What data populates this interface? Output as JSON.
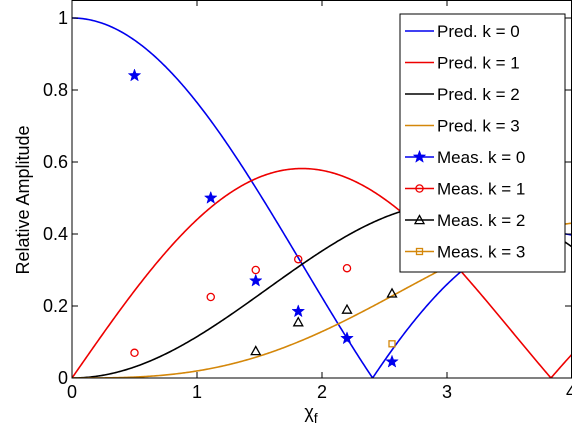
{
  "chart_data": {
    "type": "line",
    "xlabel": "χ",
    "xlabel_subscript": "f",
    "ylabel": "Relative Amplitude",
    "xlim": [
      0,
      4
    ],
    "ylim": [
      0,
      1.05
    ],
    "x_ticks": [
      0,
      1,
      2,
      3,
      4
    ],
    "x_tick_labels": [
      "0",
      "1",
      "2",
      "3",
      "4"
    ],
    "y_ticks": [
      0,
      0.2,
      0.4,
      0.6,
      0.8,
      1
    ],
    "y_tick_labels": [
      "0",
      "0.2",
      "0.4",
      "0.6",
      "0.8",
      "1"
    ],
    "grid": false,
    "legend_position": "top-right",
    "series": [
      {
        "name": "Pred. k = 0",
        "kind": "line",
        "color": "#0000ee",
        "order": 0
      },
      {
        "name": "Pred. k = 1",
        "kind": "line",
        "color": "#ee0000",
        "order": 1
      },
      {
        "name": "Pred. k = 2",
        "kind": "line",
        "color": "#000000",
        "order": 2
      },
      {
        "name": "Pred. k = 3",
        "kind": "line",
        "color": "#d4870a",
        "order": 3
      },
      {
        "name": "Meas. k = 0",
        "kind": "marker",
        "marker": "star",
        "color": "#0000ee",
        "x": [
          0.5,
          1.11,
          1.47,
          1.81,
          2.2,
          2.56
        ],
        "y": [
          0.84,
          0.5,
          0.27,
          0.185,
          0.11,
          0.045
        ]
      },
      {
        "name": "Meas. k = 1",
        "kind": "marker",
        "marker": "circle",
        "color": "#ee0000",
        "x": [
          0.5,
          1.11,
          1.47,
          1.81,
          2.2
        ],
        "y": [
          0.07,
          0.225,
          0.3,
          0.33,
          0.305
        ]
      },
      {
        "name": "Meas. k = 2",
        "kind": "marker",
        "marker": "triangle",
        "color": "#000000",
        "x": [
          1.47,
          1.81,
          2.2,
          2.56
        ],
        "y": [
          0.075,
          0.155,
          0.19,
          0.235
        ]
      },
      {
        "name": "Meas. k = 3",
        "kind": "marker",
        "marker": "square",
        "color": "#d4870a",
        "x": [
          2.56
        ],
        "y": [
          0.095
        ]
      }
    ]
  }
}
